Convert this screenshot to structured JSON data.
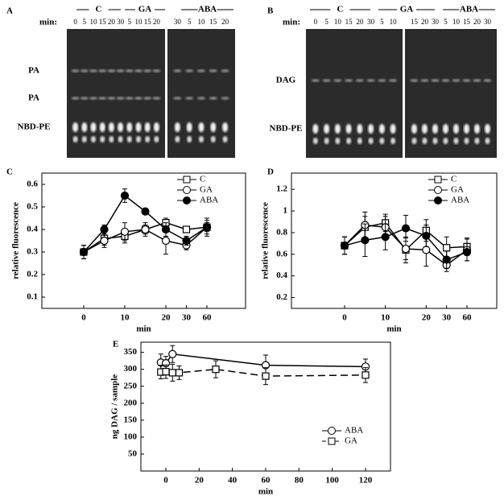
{
  "gels": [
    {
      "panel": "A",
      "min_label": "min:",
      "groups": [
        "C",
        "GA",
        "ABA"
      ],
      "lanes": [
        [
          "0",
          "5",
          "10",
          "15",
          "20",
          "30",
          "5",
          "10",
          "15",
          "20"
        ],
        [
          "30",
          "5",
          "10",
          "15",
          "20"
        ]
      ],
      "bands": [
        "PA",
        "PA",
        "NBD-PE"
      ]
    },
    {
      "panel": "B",
      "min_label": "min:",
      "groups": [
        "C",
        "GA",
        "ABA"
      ],
      "lanes": [
        [
          "0",
          "5",
          "10",
          "15",
          "20",
          "30",
          "5",
          "10"
        ],
        [
          "15",
          "20",
          "30",
          "5",
          "10",
          "15",
          "20",
          "30"
        ]
      ],
      "bands": [
        "DAG",
        "NBD-PE"
      ]
    }
  ],
  "chart_data": [
    {
      "type": "line",
      "panel": "C",
      "ylabel": "relative fluorescence",
      "xlabel": "min",
      "categories": [
        "0",
        null,
        "10",
        null,
        "20",
        "30",
        "60"
      ],
      "ylim": [
        0.05,
        0.65
      ],
      "yticks": [
        0.1,
        0.2,
        0.3,
        0.4,
        0.5,
        0.6
      ],
      "legend": "upper right",
      "series": [
        {
          "name": "C",
          "color": "#000000",
          "marker": "square",
          "filled": false,
          "values": [
            0.3,
            0.36,
            0.37,
            0.4,
            0.43,
            0.4,
            0.41
          ],
          "errors": [
            0.03,
            0.03,
            0.03,
            0.02,
            0.02,
            0.01,
            0.02
          ]
        },
        {
          "name": "GA",
          "color": "#000000",
          "marker": "circle",
          "filled": false,
          "values": [
            0.3,
            0.35,
            0.39,
            0.4,
            0.35,
            0.33,
            0.41
          ],
          "errors": [
            0.03,
            0.03,
            0.04,
            0.03,
            0.06,
            0.02,
            0.03
          ]
        },
        {
          "name": "ABA",
          "color": "#000000",
          "marker": "circle",
          "filled": true,
          "values": [
            0.3,
            0.4,
            0.55,
            0.48,
            0.4,
            0.35,
            0.41
          ],
          "errors": [
            0.03,
            0.02,
            0.03,
            0.01,
            0.03,
            0.02,
            0.04
          ]
        }
      ]
    },
    {
      "type": "line",
      "panel": "D",
      "ylabel": "relative fluorescence",
      "xlabel": "min",
      "categories": [
        "0",
        null,
        "10",
        null,
        "20",
        "30",
        "60"
      ],
      "ylim": [
        0.1,
        1.35
      ],
      "yticks": [
        0.2,
        0.4,
        0.6,
        0.8,
        1.0,
        1.2
      ],
      "legend": "upper right",
      "series": [
        {
          "name": "C",
          "color": "#000000",
          "marker": "square",
          "filled": false,
          "values": [
            0.68,
            0.85,
            0.89,
            0.64,
            0.82,
            0.66,
            0.67
          ],
          "errors": [
            0.08,
            0.1,
            0.08,
            0.12,
            0.1,
            0.1,
            0.08
          ]
        },
        {
          "name": "GA",
          "color": "#000000",
          "marker": "circle",
          "filled": false,
          "values": [
            0.68,
            0.87,
            0.85,
            0.65,
            0.64,
            0.5,
            0.64
          ],
          "errors": [
            0.08,
            0.12,
            0.1,
            0.1,
            0.15,
            0.06,
            0.1
          ]
        },
        {
          "name": "ABA",
          "color": "#000000",
          "marker": "circle",
          "filled": true,
          "values": [
            0.68,
            0.73,
            0.76,
            0.84,
            0.77,
            0.55,
            0.62
          ],
          "errors": [
            0.08,
            0.15,
            0.12,
            0.12,
            0.1,
            0.08,
            0.08
          ]
        }
      ]
    },
    {
      "type": "line",
      "panel": "E",
      "ylabel": "ng DAG / sample",
      "xlabel": "min",
      "xlim": [
        -15,
        135
      ],
      "xticks": [
        0,
        20,
        40,
        60,
        80,
        100,
        120
      ],
      "ylim": [
        0,
        380
      ],
      "yticks": [
        50,
        100,
        150,
        200,
        250,
        300,
        350
      ],
      "legend": "lower right",
      "series": [
        {
          "name": "ABA",
          "color": "#000000",
          "marker": "circle",
          "filled": false,
          "dashed": false,
          "x": [
            -3,
            0,
            4,
            60,
            120
          ],
          "values": [
            320,
            318,
            345,
            312,
            308
          ],
          "errors": [
            25,
            20,
            25,
            30,
            22
          ]
        },
        {
          "name": "GA",
          "color": "#000000",
          "marker": "square",
          "filled": false,
          "dashed": true,
          "x": [
            -3,
            0,
            4,
            8,
            30,
            60,
            120
          ],
          "values": [
            292,
            293,
            290,
            290,
            300,
            280,
            283
          ],
          "errors": [
            20,
            20,
            25,
            20,
            25,
            25,
            22
          ]
        }
      ]
    }
  ]
}
